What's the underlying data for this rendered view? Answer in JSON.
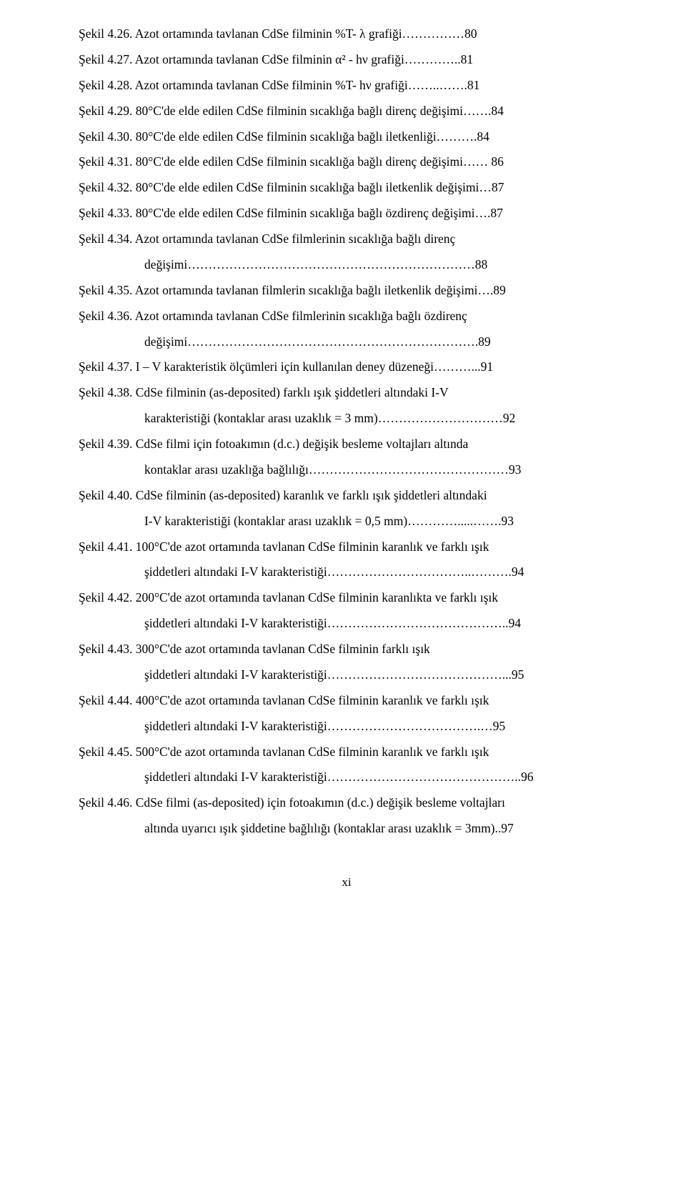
{
  "entries": [
    {
      "lines": [
        "Şekil 4.26. Azot ortamında tavlanan CdSe filminin %T- λ grafiği……………80"
      ]
    },
    {
      "lines": [
        "Şekil 4.27. Azot ortamında tavlanan CdSe filminin α² - hν grafiği…………..81"
      ]
    },
    {
      "lines": [
        "Şekil 4.28. Azot ortamında tavlanan CdSe filminin %T- hν grafiği……..…….81"
      ]
    },
    {
      "lines": [
        "Şekil 4.29. 80°C'de elde edilen CdSe filminin sıcaklığa bağlı direnç değişimi…….84"
      ]
    },
    {
      "lines": [
        "Şekil 4.30. 80°C'de elde edilen CdSe filminin sıcaklığa bağlı iletkenliği……….84"
      ]
    },
    {
      "lines": [
        "Şekil 4.31. 80°C'de elde edilen CdSe filminin sıcaklığa bağlı direnç değişimi…… 86"
      ]
    },
    {
      "lines": [
        "Şekil 4.32. 80°C'de elde edilen CdSe filminin sıcaklığa bağlı iletkenlik değişimi…87"
      ]
    },
    {
      "lines": [
        "Şekil 4.33. 80°C'de elde edilen CdSe filminin sıcaklığa bağlı özdirenç değişimi….87"
      ]
    },
    {
      "lines": [
        "Şekil 4.34. Azot ortamında tavlanan CdSe filmlerinin sıcaklığa bağlı direnç"
      ],
      "cont": [
        "değişimi……………………………………………………………88"
      ]
    },
    {
      "lines": [
        "Şekil 4.35. Azot ortamında tavlanan filmlerin sıcaklığa bağlı iletkenlik değişimi….89"
      ]
    },
    {
      "lines": [
        "Şekil 4.36. Azot ortamında tavlanan CdSe filmlerinin sıcaklığa bağlı özdirenç"
      ],
      "cont": [
        "değişimi…………………………………………………………….89"
      ]
    },
    {
      "lines": [
        "Şekil 4.37. I – V karakteristik ölçümleri için kullanılan deney düzeneği………...91"
      ]
    },
    {
      "lines": [
        "Şekil 4.38. CdSe filminin (as-deposited) farklı ışık şiddetleri altındaki I-V"
      ],
      "cont": [
        "karakteristiği (kontaklar arası uzaklık = 3 mm)…………………………92"
      ]
    },
    {
      "lines": [
        "Şekil 4.39. CdSe filmi için fotoakımın (d.c.) değişik besleme voltajları altında"
      ],
      "cont": [
        "kontaklar arası uzaklığa bağlılığı…………………………………………93"
      ]
    },
    {
      "lines": [
        "Şekil 4.40. CdSe filminin (as-deposited) karanlık ve farklı ışık şiddetleri altındaki"
      ],
      "cont": [
        "I-V karakteristiği (kontaklar arası uzaklık = 0,5 mm)………….....…….93"
      ]
    },
    {
      "lines": [
        "Şekil 4.41. 100°C'de azot ortamında tavlanan CdSe filminin karanlık ve farklı ışık"
      ],
      "cont": [
        "şiddetleri altındaki I-V karakteristiği……………………………..……….94"
      ]
    },
    {
      "lines": [
        "Şekil 4.42. 200°C'de azot ortamında tavlanan CdSe filminin karanlıkta ve farklı ışık"
      ],
      "cont": [
        " şiddetleri altındaki I-V karakteristiği……………………………………..94"
      ]
    },
    {
      "lines": [
        "Şekil 4.43. 300°C'de azot ortamında tavlanan CdSe filminin farklı ışık"
      ],
      "cont": [
        "şiddetleri altındaki I-V karakteristiği……………………………………...95"
      ]
    },
    {
      "lines": [
        "Şekil 4.44. 400°C'de azot ortamında tavlanan CdSe filminin karanlık ve farklı ışık"
      ],
      "cont": [
        "şiddetleri altındaki I-V karakteristiği……………………………….…95"
      ]
    },
    {
      "lines": [
        "Şekil 4.45. 500°C'de azot ortamında tavlanan CdSe filminin karanlık ve farklı ışık"
      ],
      "cont": [
        "şiddetleri altındaki I-V karakteristiği………………………………………..96"
      ]
    },
    {
      "lines": [
        "Şekil 4.46. CdSe filmi (as-deposited) için fotoakımın (d.c.) değişik besleme voltajları"
      ],
      "cont": [
        "altında uyarıcı ışık şiddetine bağlılığı (kontaklar arası uzaklık = 3mm)..97"
      ]
    }
  ],
  "pageNumber": "xi"
}
